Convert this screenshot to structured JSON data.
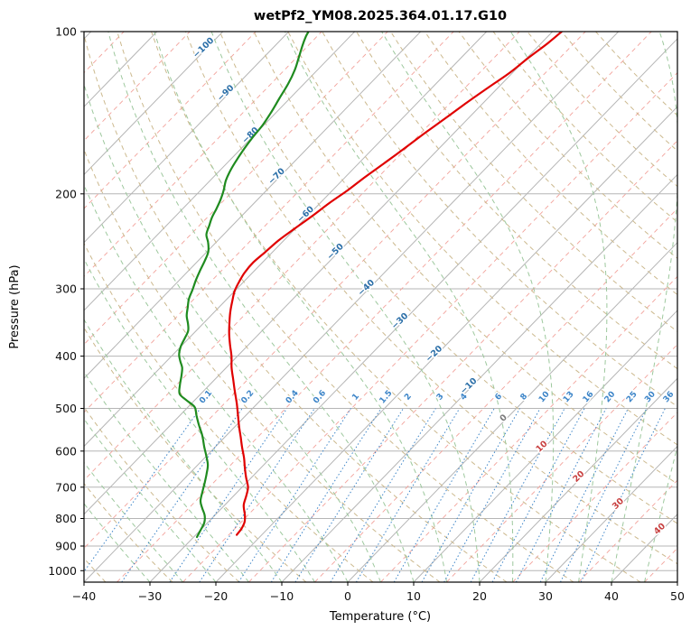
{
  "chart_data": {
    "type": "line",
    "subtype": "skewT-logP-sounding",
    "title": "wetPf2_YM08.2025.364.01.17.G10",
    "xlabel": "Temperature (°C)",
    "ylabel": "Pressure (hPa)",
    "x_ticks": [
      -40,
      -30,
      -20,
      -10,
      0,
      10,
      20,
      30,
      40,
      50
    ],
    "p_ticks": [
      100,
      200,
      300,
      400,
      500,
      600,
      700,
      800,
      900,
      1000
    ],
    "x_range": [
      -40,
      50
    ],
    "p_range": [
      1050,
      100
    ],
    "skew_slope": 0.97,
    "series": [
      {
        "name": "temperature",
        "color": "#e00000",
        "width": 2.2,
        "points": [
          [
            858,
            -23.8
          ],
          [
            835,
            -24.0
          ],
          [
            812,
            -24.5
          ],
          [
            788,
            -25.5
          ],
          [
            756,
            -27.1
          ],
          [
            726,
            -28.1
          ],
          [
            700,
            -29.1
          ],
          [
            672,
            -30.8
          ],
          [
            645,
            -32.4
          ],
          [
            618,
            -34.0
          ],
          [
            590,
            -35.9
          ],
          [
            565,
            -37.6
          ],
          [
            540,
            -39.4
          ],
          [
            515,
            -41.2
          ],
          [
            490,
            -43.1
          ],
          [
            465,
            -45.2
          ],
          [
            442,
            -47.2
          ],
          [
            420,
            -49.2
          ],
          [
            400,
            -50.9
          ],
          [
            380,
            -52.9
          ],
          [
            362,
            -54.7
          ],
          [
            345,
            -56.3
          ],
          [
            330,
            -57.7
          ],
          [
            316,
            -58.9
          ],
          [
            303,
            -60.0
          ],
          [
            291,
            -60.7
          ],
          [
            280,
            -61.2
          ],
          [
            268,
            -61.4
          ],
          [
            256,
            -61.1
          ],
          [
            244,
            -60.8
          ],
          [
            232,
            -60.1
          ],
          [
            220,
            -59.3
          ],
          [
            208,
            -58.6
          ],
          [
            197,
            -57.7
          ],
          [
            186,
            -57.0
          ],
          [
            175,
            -56.1
          ],
          [
            164,
            -55.2
          ],
          [
            154,
            -54.4
          ],
          [
            145,
            -53.5
          ],
          [
            136,
            -52.6
          ],
          [
            127,
            -51.5
          ],
          [
            119,
            -50.4
          ],
          [
            112,
            -49.8
          ],
          [
            105,
            -49.0
          ],
          [
            100,
            -48.6
          ]
        ]
      },
      {
        "name": "dewpoint",
        "color": "#1f8b1f",
        "width": 2.2,
        "points": [
          [
            866,
            -29.5
          ],
          [
            840,
            -30.0
          ],
          [
            815,
            -30.5
          ],
          [
            790,
            -31.5
          ],
          [
            765,
            -33.0
          ],
          [
            742,
            -34.3
          ],
          [
            712,
            -35.4
          ],
          [
            685,
            -36.4
          ],
          [
            660,
            -37.4
          ],
          [
            636,
            -38.5
          ],
          [
            610,
            -40.2
          ],
          [
            589,
            -41.7
          ],
          [
            562,
            -43.6
          ],
          [
            538,
            -45.6
          ],
          [
            515,
            -47.5
          ],
          [
            497,
            -49.0
          ],
          [
            483,
            -51.2
          ],
          [
            470,
            -53.2
          ],
          [
            452,
            -54.5
          ],
          [
            435,
            -55.6
          ],
          [
            420,
            -56.7
          ],
          [
            408,
            -58.0
          ],
          [
            397,
            -59.1
          ],
          [
            384,
            -60.0
          ],
          [
            371,
            -60.6
          ],
          [
            359,
            -61.2
          ],
          [
            348,
            -62.3
          ],
          [
            337,
            -63.6
          ],
          [
            325,
            -64.7
          ],
          [
            313,
            -65.8
          ],
          [
            301,
            -66.6
          ],
          [
            289,
            -67.5
          ],
          [
            277,
            -68.3
          ],
          [
            266,
            -69.0
          ],
          [
            256,
            -69.8
          ],
          [
            246,
            -71.2
          ],
          [
            238,
            -72.6
          ],
          [
            229,
            -73.5
          ],
          [
            221,
            -74.3
          ],
          [
            213,
            -74.9
          ],
          [
            205,
            -75.6
          ],
          [
            197,
            -76.5
          ],
          [
            189,
            -77.6
          ],
          [
            181,
            -78.4
          ],
          [
            173,
            -79.0
          ],
          [
            165,
            -79.5
          ],
          [
            157,
            -79.9
          ],
          [
            149,
            -80.2
          ],
          [
            141,
            -80.8
          ],
          [
            133,
            -81.6
          ],
          [
            125,
            -82.4
          ],
          [
            118,
            -83.4
          ],
          [
            112,
            -84.6
          ],
          [
            106,
            -85.9
          ],
          [
            102,
            -86.7
          ],
          [
            100,
            -87.0
          ]
        ]
      }
    ],
    "isotherm_labels": [
      {
        "t": -100,
        "p": 108
      },
      {
        "t": -90,
        "p": 131
      },
      {
        "t": -80,
        "p": 157
      },
      {
        "t": -70,
        "p": 187
      },
      {
        "t": -60,
        "p": 220
      },
      {
        "t": -50,
        "p": 258
      },
      {
        "t": -40,
        "p": 301
      },
      {
        "t": -30,
        "p": 347
      },
      {
        "t": -20,
        "p": 399
      },
      {
        "t": -10,
        "p": 458
      },
      {
        "t": 0,
        "p": 525
      },
      {
        "t": 10,
        "p": 593
      },
      {
        "t": 20,
        "p": 674
      },
      {
        "t": 30,
        "p": 757
      },
      {
        "t": 40,
        "p": 843
      }
    ],
    "label_colors": {
      "negative": "#2b6fa8",
      "zero": "#7a7a7a",
      "positive": "#c84040"
    },
    "background": {
      "grid_color": "#b5b5b5",
      "isotherm_major": {
        "step": 10,
        "color": "#b5b5b5"
      },
      "isotherm_minor": {
        "step": 5,
        "color": "#f2a29b",
        "dash": "5 4"
      },
      "dry_adiabats": {
        "theta_start": -40,
        "theta_end": 170,
        "step": 10,
        "color": "#ccb98e",
        "dash": "5 4"
      },
      "moist_adiabats": {
        "t_start": -30,
        "t_end": 50,
        "step": 5,
        "color": "#9dc89d",
        "dash": "5 4"
      },
      "mixing_ratio": {
        "values": [
          0.1,
          0.2,
          0.4,
          0.6,
          1,
          1.5,
          2,
          3,
          4,
          6,
          8,
          10,
          13,
          16,
          20,
          25,
          30,
          36
        ],
        "color": "#3d85c8",
        "dash": "1.5 2.5",
        "top_p": 500,
        "label_p": 479
      }
    }
  }
}
